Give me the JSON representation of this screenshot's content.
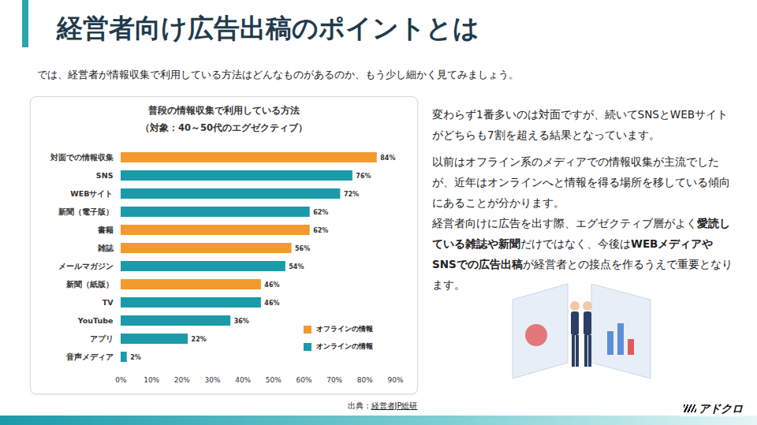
{
  "slide": {
    "title": "経営者向け広告出稿のポイントとは",
    "intro": "では、経営者が情報収集で利用している方法はどんなものがあるのか、もう少し細かく見てみましょう。",
    "paragraphs": [
      [
        {
          "text": "変わらず1番多いのは対面ですが、続いてSNSとWEBサイトがどちらも7割を超える結果となっています。",
          "bold": false
        }
      ],
      [
        {
          "text": "以前はオフライン系のメディアでの情報収集が主流でしたが、近年はオンラインへと情報を得る場所を移している傾向にあることが分かります。",
          "bold": false
        }
      ],
      [
        {
          "text": "経営者向けに広告を出す際、エグゼクティブ層がよく",
          "bold": false
        },
        {
          "text": "愛読している雑誌や新聞",
          "bold": true
        },
        {
          "text": "だけではなく、今後は",
          "bold": false
        },
        {
          "text": "WEBメディアやSNSでの広告出稿",
          "bold": true
        },
        {
          "text": "が経営者との接点を作るうえで重要となります。",
          "bold": false
        }
      ]
    ],
    "source": {
      "label": "出典：",
      "text": "経営者JP総研"
    },
    "logo": "アドクロ"
  },
  "chart_data": {
    "type": "bar",
    "title": "普段の情報収集で利用している方法",
    "subtitle": "（対象：40～50代のエグゼクティブ）",
    "orientation": "horizontal",
    "categories": [
      "対面での情報収集",
      "SNS",
      "WEBサイト",
      "新聞（電子版）",
      "書籍",
      "雑誌",
      "メールマガジン",
      "新聞（紙版）",
      "TV",
      "YouTube",
      "アプリ",
      "音声メディア"
    ],
    "series": [
      {
        "name": "オフラインの情報",
        "color": "#f39a2e",
        "values": [
          84,
          null,
          null,
          null,
          62,
          56,
          null,
          46,
          null,
          null,
          null,
          null
        ],
        "value_labels": [
          "84%",
          null,
          null,
          null,
          "62%",
          "56%",
          null,
          "46%",
          null,
          null,
          null,
          null
        ]
      },
      {
        "name": "オンラインの情報",
        "color": "#1b9aaa",
        "values": [
          null,
          76,
          72,
          62,
          null,
          null,
          54,
          null,
          46,
          36,
          22,
          2
        ],
        "value_labels": [
          null,
          "76%",
          "72%",
          "62%",
          null,
          null,
          "54%",
          null,
          "46%",
          "36%",
          "22%",
          "2%"
        ]
      }
    ],
    "xlim": [
      0,
      90
    ],
    "xticks": [
      {
        "value": 0,
        "label": "0%"
      },
      {
        "value": 10,
        "label": "10%"
      },
      {
        "value": 20,
        "label": "20%"
      },
      {
        "value": 30,
        "label": "30%"
      },
      {
        "value": 40,
        "label": "40%"
      },
      {
        "value": 50,
        "label": "50%"
      },
      {
        "value": 60,
        "label": "60%"
      },
      {
        "value": 70,
        "label": "70%"
      },
      {
        "value": 80,
        "label": "80%"
      },
      {
        "value": 90,
        "label": "90%"
      }
    ],
    "grid": false,
    "data_labels": true,
    "legend": "bottom-right"
  }
}
